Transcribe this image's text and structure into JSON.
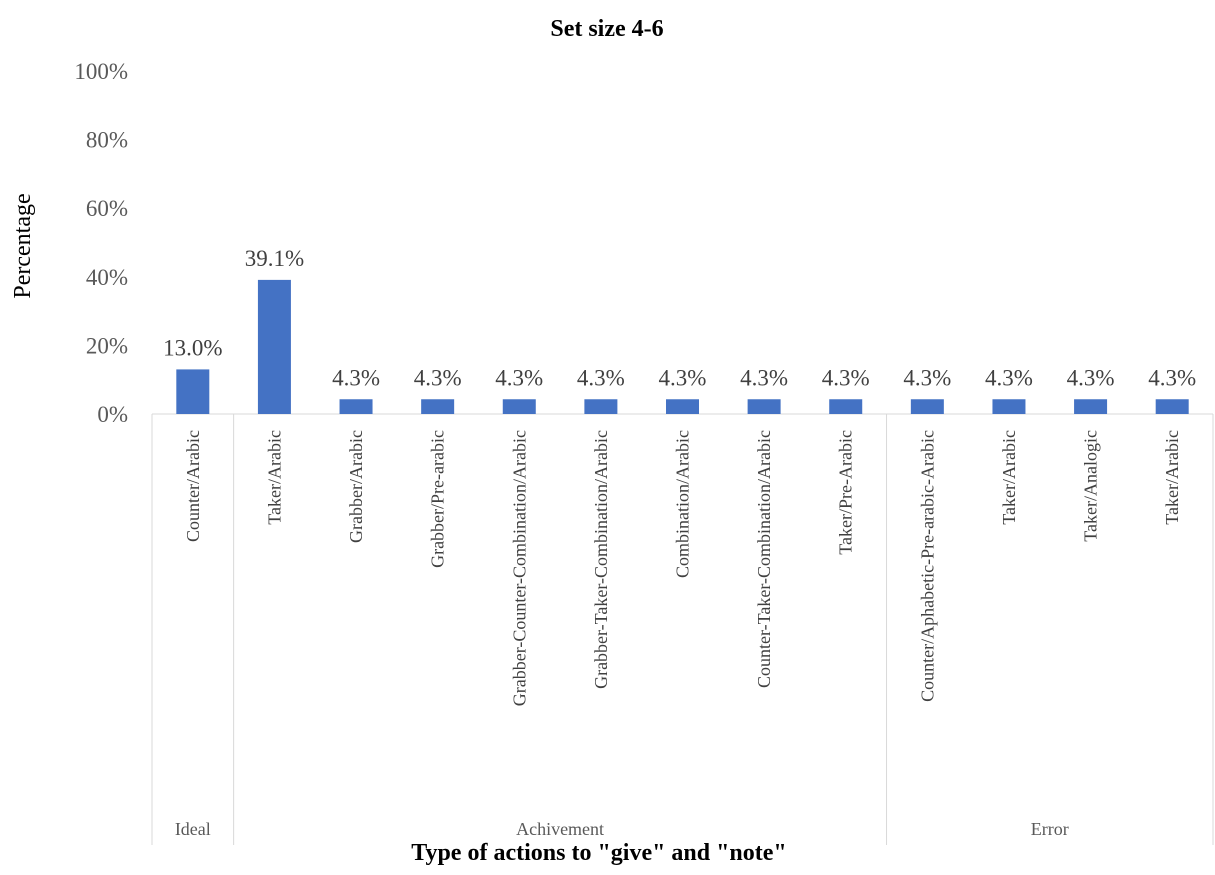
{
  "chart_data": {
    "type": "bar",
    "title": "Set size 4-6",
    "xlabel": "Type of actions to \"give\" and \"note\"",
    "ylabel": "Percentage",
    "ylim": [
      0,
      100
    ],
    "yticks": [
      "0%",
      "20%",
      "40%",
      "60%",
      "80%",
      "100%"
    ],
    "grid": false,
    "legend": "none",
    "bar_color": "#4472C4",
    "categories": [
      "Counter/Arabic",
      "Taker/Arabic",
      "Grabber/Arabic",
      "Grabber/Pre-arabic",
      "Grabber-Counter-Combination/Arabic",
      "Grabber-Taker-Combination/Arabic",
      "Combination/Arabic",
      "Counter-Taker-Combination/Arabic",
      "Taker/Pre-Arabic",
      "Counter/Aphabetic-Pre-arabic-Arabic",
      "Taker/Arabic",
      "Taker/Analogic",
      "Taker/Arabic"
    ],
    "values": [
      13.0,
      39.1,
      4.3,
      4.3,
      4.3,
      4.3,
      4.3,
      4.3,
      4.3,
      4.3,
      4.3,
      4.3,
      4.3
    ],
    "data_labels": [
      "13.0%",
      "39.1%",
      "4.3%",
      "4.3%",
      "4.3%",
      "4.3%",
      "4.3%",
      "4.3%",
      "4.3%",
      "4.3%",
      "4.3%",
      "4.3%",
      "4.3%"
    ],
    "groups": [
      {
        "name": "Ideal",
        "count": 1
      },
      {
        "name": "Achivement",
        "count": 8
      },
      {
        "name": "Error",
        "count": 4
      }
    ]
  }
}
